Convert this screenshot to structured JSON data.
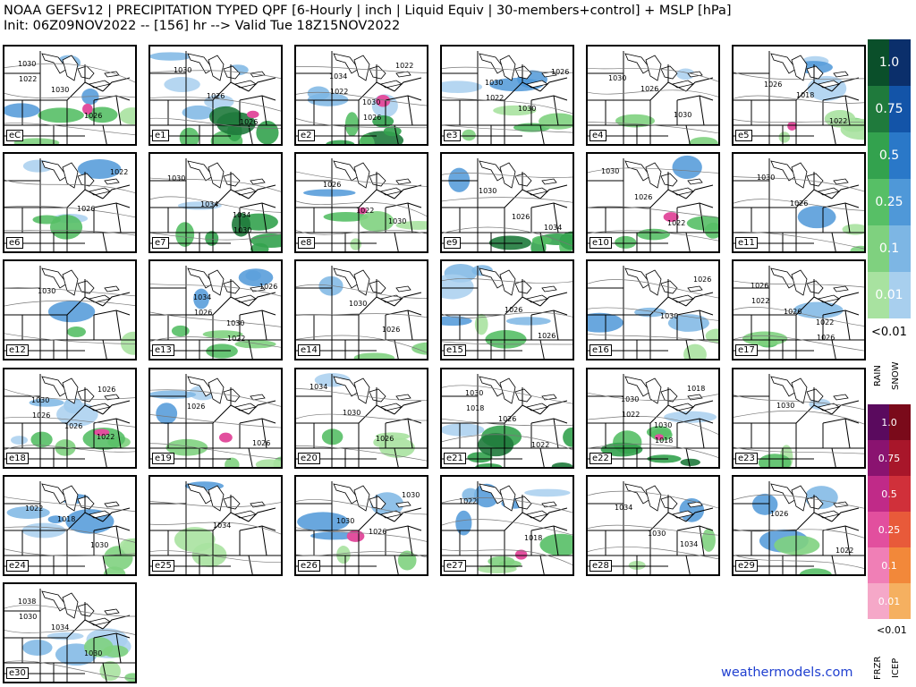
{
  "title_line1": "NOAA GEFSv12 | PRECIPITATION TYPED QPF [6-Hourly | inch | Liquid Equiv | 30-members+control] + MSLP [hPa]",
  "title_line2": "Init: 06Z09NOV2022 -- [156] hr --> Valid Tue 18Z15NOV2022",
  "credit": "weathermodels.com",
  "legend": {
    "rain_snow": {
      "labels": [
        "1.0",
        "0.75",
        "0.5",
        "0.25",
        "0.1",
        "0.01"
      ],
      "below": "<0.01",
      "axis_labels": [
        "RAIN",
        "SNOW"
      ],
      "rain_colors": [
        "#0a4f2a",
        "#1f7a3c",
        "#33a24e",
        "#57bf66",
        "#7fd17f",
        "#a8e2a0"
      ],
      "snow_colors": [
        "#0b2f6b",
        "#1354a8",
        "#2a78c8",
        "#4f98d8",
        "#7db6e4",
        "#a8cfee"
      ]
    },
    "frzr_icep": {
      "labels": [
        "1.0",
        "0.75",
        "0.5",
        "0.25",
        "0.1",
        "0.01"
      ],
      "below": "<0.01",
      "axis_labels": [
        "FRZR",
        "ICEP"
      ],
      "frzr_colors": [
        "#5a0a5e",
        "#8a1370",
        "#c02a88",
        "#e24f9e",
        "#f07fb6",
        "#f5a8c8"
      ],
      "icep_colors": [
        "#7a0a1a",
        "#a8162a",
        "#d0303a",
        "#e85a3a",
        "#f2883a",
        "#f5b060"
      ]
    }
  },
  "panels": [
    {
      "label": "eC",
      "pressures": [
        "1030",
        "1030",
        "1026",
        "1022"
      ],
      "snow": "med",
      "rain": "med",
      "mix": true
    },
    {
      "label": "e1",
      "pressures": [
        "1030",
        "1026",
        "1026"
      ],
      "snow": "high",
      "rain": "high",
      "mix": true
    },
    {
      "label": "e2",
      "pressures": [
        "1034",
        "1030",
        "1022",
        "1022",
        "1026"
      ],
      "snow": "med",
      "rain": "high",
      "mix": true
    },
    {
      "label": "e3",
      "pressures": [
        "1030",
        "1030",
        "1026",
        "1022"
      ],
      "snow": "med",
      "rain": "med",
      "mix": false
    },
    {
      "label": "e4",
      "pressures": [
        "1026",
        "1030",
        "1030"
      ],
      "snow": "low",
      "rain": "low",
      "mix": false
    },
    {
      "label": "e5",
      "pressures": [
        "1018",
        "1022",
        "1026"
      ],
      "snow": "med",
      "rain": "med",
      "mix": true
    },
    {
      "label": "e6",
      "pressures": [
        "1026",
        "1022"
      ],
      "snow": "med",
      "rain": "low",
      "mix": false
    },
    {
      "label": "e7",
      "pressures": [
        "1034",
        "1030",
        "1034",
        "1030"
      ],
      "snow": "low",
      "rain": "high",
      "mix": false
    },
    {
      "label": "e8",
      "pressures": [
        "1030",
        "1026",
        "1022"
      ],
      "snow": "low",
      "rain": "med",
      "mix": true
    },
    {
      "label": "e9",
      "pressures": [
        "1034",
        "1030",
        "1026"
      ],
      "snow": "low",
      "rain": "high",
      "mix": false
    },
    {
      "label": "e10",
      "pressures": [
        "1030",
        "1026",
        "1022"
      ],
      "snow": "low",
      "rain": "med",
      "mix": true
    },
    {
      "label": "e11",
      "pressures": [
        "1030",
        "1026"
      ],
      "snow": "low",
      "rain": "low",
      "mix": false
    },
    {
      "label": "e12",
      "pressures": [
        "1030"
      ],
      "snow": "low",
      "rain": "low",
      "mix": false
    },
    {
      "label": "e13",
      "pressures": [
        "1034",
        "1030",
        "1026",
        "1026",
        "1022"
      ],
      "snow": "med",
      "rain": "med",
      "mix": false
    },
    {
      "label": "e14",
      "pressures": [
        "1030",
        "1026"
      ],
      "snow": "low",
      "rain": "low",
      "mix": false
    },
    {
      "label": "e15",
      "pressures": [
        "1026",
        "1026"
      ],
      "snow": "high",
      "rain": "low",
      "mix": false
    },
    {
      "label": "e16",
      "pressures": [
        "1030",
        "1026"
      ],
      "snow": "med",
      "rain": "low",
      "mix": false
    },
    {
      "label": "e17",
      "pressures": [
        "1022",
        "1026",
        "1026",
        "1026",
        "1022"
      ],
      "snow": "low",
      "rain": "low",
      "mix": false
    },
    {
      "label": "e18",
      "pressures": [
        "1022",
        "1030",
        "1026",
        "1026",
        "1026"
      ],
      "snow": "high",
      "rain": "med",
      "mix": true
    },
    {
      "label": "e19",
      "pressures": [
        "1026",
        "1026"
      ],
      "snow": "med",
      "rain": "med",
      "mix": true
    },
    {
      "label": "e20",
      "pressures": [
        "1034",
        "1030",
        "1026"
      ],
      "snow": "low",
      "rain": "med",
      "mix": false
    },
    {
      "label": "e21",
      "pressures": [
        "1030",
        "1026",
        "1022",
        "1018"
      ],
      "snow": "low",
      "rain": "high",
      "mix": false
    },
    {
      "label": "e22",
      "pressures": [
        "1030",
        "1030",
        "1018",
        "1022",
        "1018"
      ],
      "snow": "low",
      "rain": "high",
      "mix": true
    },
    {
      "label": "e23",
      "pressures": [
        "1030"
      ],
      "snow": "low",
      "rain": "low",
      "mix": false
    },
    {
      "label": "e24",
      "pressures": [
        "1018",
        "1030",
        "1022"
      ],
      "snow": "high",
      "rain": "med",
      "mix": false
    },
    {
      "label": "e25",
      "pressures": [
        "1034"
      ],
      "snow": "low",
      "rain": "low",
      "mix": false
    },
    {
      "label": "e26",
      "pressures": [
        "1026",
        "1030",
        "1030"
      ],
      "snow": "med",
      "rain": "low",
      "mix": true
    },
    {
      "label": "e27",
      "pressures": [
        "1018",
        "1022"
      ],
      "snow": "high",
      "rain": "med",
      "mix": true
    },
    {
      "label": "e28",
      "pressures": [
        "1034",
        "1034",
        "1030"
      ],
      "snow": "low",
      "rain": "low",
      "mix": false
    },
    {
      "label": "e29",
      "pressures": [
        "1022",
        "1026"
      ],
      "snow": "med",
      "rain": "low",
      "mix": false
    },
    {
      "label": "e30",
      "pressures": [
        "1038",
        "1034",
        "1030",
        "1030"
      ],
      "snow": "high",
      "rain": "med",
      "mix": false
    }
  ]
}
